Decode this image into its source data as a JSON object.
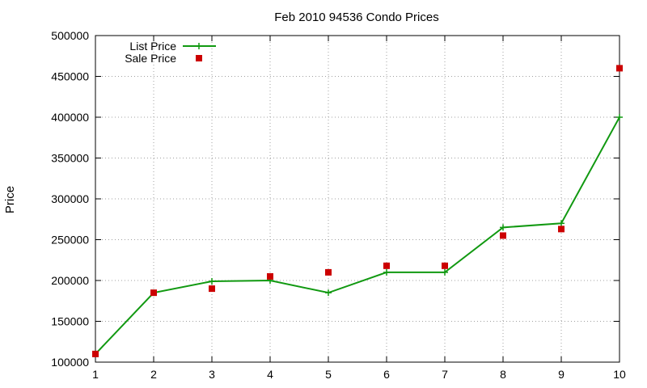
{
  "chart_data": {
    "type": "line",
    "title": "Feb 2010 94536 Condo Prices",
    "xlabel": "",
    "ylabel": "Price",
    "x": [
      1,
      2,
      3,
      4,
      5,
      6,
      7,
      8,
      9,
      10
    ],
    "xlim": [
      1,
      10
    ],
    "ylim": [
      100000,
      500000
    ],
    "yticks": [
      "100000",
      "150000",
      "200000",
      "250000",
      "300000",
      "350000",
      "400000",
      "450000",
      "500000"
    ],
    "xticks": [
      "1",
      "2",
      "3",
      "4",
      "5",
      "6",
      "7",
      "8",
      "9",
      "10"
    ],
    "grid": true,
    "legend_position": "top-left",
    "series": [
      {
        "name": "List Price",
        "style": "line-with-plus-markers",
        "color": "#119911",
        "values": [
          110000,
          185000,
          199000,
          200000,
          185000,
          210000,
          210000,
          265000,
          270000,
          400000
        ]
      },
      {
        "name": "Sale Price",
        "style": "square-points",
        "color": "#cc0000",
        "values": [
          110000,
          185000,
          190000,
          205000,
          210000,
          218000,
          218000,
          255000,
          263000,
          460000
        ]
      }
    ]
  }
}
